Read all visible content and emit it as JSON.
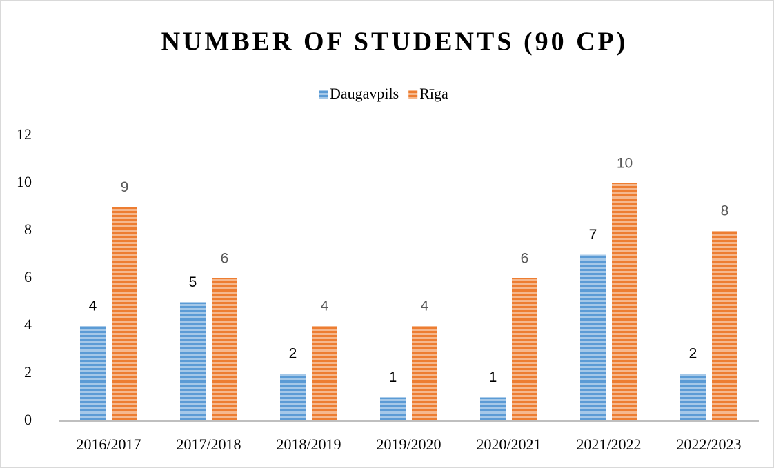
{
  "chart_data": {
    "type": "bar",
    "title": "NUMBER OF STUDENTS (90 CP)",
    "categories": [
      "2016/2017",
      "2017/2018",
      "2018/2019",
      "2019/2020",
      "2020/2021",
      "2021/2022",
      "2022/2023"
    ],
    "series": [
      {
        "name": "Daugavpils",
        "color": "#5b9bd5",
        "values": [
          4,
          5,
          2,
          1,
          1,
          7,
          2
        ]
      },
      {
        "name": "Rīga",
        "color": "#ed7d31",
        "values": [
          9,
          6,
          4,
          4,
          6,
          10,
          8
        ]
      }
    ],
    "ylim": [
      0,
      12
    ],
    "yticks": [
      0,
      2,
      4,
      6,
      8,
      10,
      12
    ],
    "grid": false,
    "legend": "top"
  }
}
